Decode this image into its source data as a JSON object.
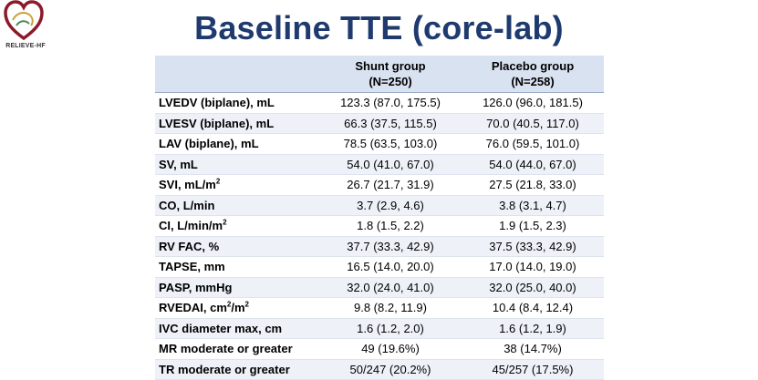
{
  "logo": {
    "text": "RELIEVE-HF"
  },
  "title": "Baseline TTE (core-lab)",
  "table": {
    "headers": {
      "shunt": "Shunt group",
      "shunt_n": "(N=250)",
      "placebo": "Placebo group",
      "placebo_n": "(N=258)"
    },
    "rows": [
      {
        "label": "LVEDV (biplane), mL",
        "shunt": "123.3 (87.0, 175.5)",
        "placebo": "126.0 (96.0, 181.5)"
      },
      {
        "label": "LVESV (biplane), mL",
        "shunt": "66.3 (37.5, 115.5)",
        "placebo": "70.0 (40.5, 117.0)"
      },
      {
        "label": "LAV (biplane), mL",
        "shunt": "78.5 (63.5, 103.0)",
        "placebo": "76.0 (59.5, 101.0)"
      },
      {
        "label": "SV, mL",
        "shunt": "54.0 (41.0, 67.0)",
        "placebo": "54.0 (44.0, 67.0)"
      },
      {
        "label": "SVI, mL/m",
        "sup": "2",
        "shunt": "26.7 (21.7, 31.9)",
        "placebo": "27.5 (21.8, 33.0)"
      },
      {
        "label": "CO, L/min",
        "shunt": "3.7 (2.9, 4.6)",
        "placebo": "3.8 (3.1, 4.7)"
      },
      {
        "label": "CI, L/min/m",
        "sup": "2",
        "shunt": "1.8 (1.5, 2.2)",
        "placebo": "1.9 (1.5, 2.3)"
      },
      {
        "label": "RV FAC, %",
        "shunt": "37.7 (33.3, 42.9)",
        "placebo": "37.5 (33.3, 42.9)"
      },
      {
        "label": "TAPSE, mm",
        "shunt": "16.5 (14.0, 20.0)",
        "placebo": "17.0 (14.0, 19.0)"
      },
      {
        "label": "PASP, mmHg",
        "shunt": "32.0 (24.0, 41.0)",
        "placebo": "32.0 (25.0, 40.0)"
      },
      {
        "label": "RVEDAI, cm",
        "sup": "2",
        "label_tail": "/m",
        "sup2": "2",
        "shunt": "9.8 (8.2, 11.9)",
        "placebo": "10.4 (8.4, 12.4)"
      },
      {
        "label": "IVC diameter max, cm",
        "shunt": "1.6 (1.2, 2.0)",
        "placebo": "1.6 (1.2, 1.9)"
      },
      {
        "label": "MR moderate or greater",
        "shunt": "49 (19.6%)",
        "placebo": "38 (14.7%)"
      },
      {
        "label": "TR moderate or greater",
        "shunt": "50/247 (20.2%)",
        "placebo": "45/257 (17.5%)"
      }
    ]
  }
}
